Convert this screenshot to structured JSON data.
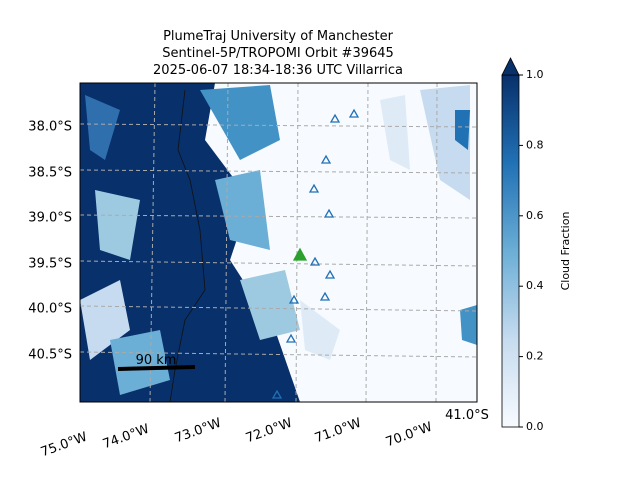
{
  "title": {
    "line1": "PlumeTraj    University of Manchester",
    "line2": "Sentinel-5P/TROPOMI Orbit #39645",
    "line3": "2025-06-07   18:34-18:36 UTC   Villarrica"
  },
  "map": {
    "lat_labels": [
      "38.0°S",
      "38.5°S",
      "39.0°S",
      "39.5°S",
      "40.0°S",
      "40.5°S"
    ],
    "lon_labels": [
      "75.0°W",
      "74.0°W",
      "73.0°W",
      "72.0°W",
      "71.0°W",
      "70.0°W"
    ],
    "corner_label": "41.0°S",
    "scale_bar": "90 km"
  },
  "colorbar": {
    "label": "Cloud Fraction",
    "lim": [
      0,
      1
    ],
    "ticks": [
      {
        "value": 0,
        "label": "0.0"
      },
      {
        "value": 0.2,
        "label": "0.2"
      },
      {
        "value": 0.4,
        "label": "0.4"
      },
      {
        "value": 0.6,
        "label": "0.6"
      },
      {
        "value": 0.8,
        "label": "0.8"
      },
      {
        "value": 1,
        "label": "1.0"
      }
    ]
  }
}
